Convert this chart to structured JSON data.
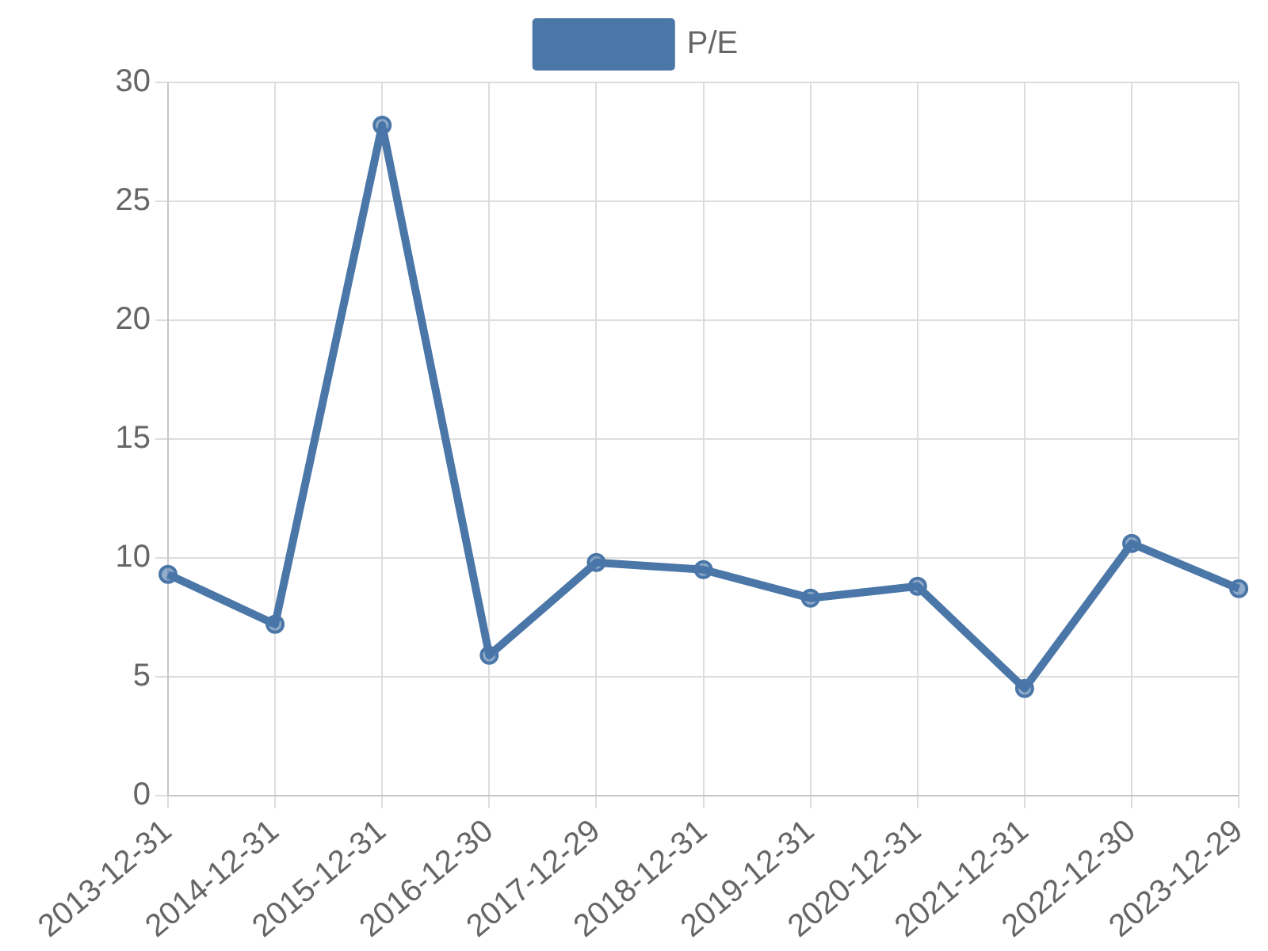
{
  "chart_data": {
    "type": "line",
    "categories": [
      "2013-12-31",
      "2014-12-31",
      "2015-12-31",
      "2016-12-30",
      "2017-12-29",
      "2018-12-31",
      "2019-12-31",
      "2020-12-31",
      "2021-12-31",
      "2022-12-30",
      "2023-12-29"
    ],
    "series": [
      {
        "name": "P/E",
        "color": "#4a76a8",
        "values": [
          9.3,
          7.2,
          28.2,
          5.9,
          9.8,
          9.5,
          8.3,
          8.8,
          4.5,
          10.6,
          8.7
        ]
      }
    ],
    "ylim": [
      0,
      30
    ],
    "yticks": [
      0,
      5,
      10,
      15,
      20,
      25,
      30
    ],
    "grid": true,
    "legend": "top",
    "marker": "circle",
    "line_style": "solid"
  }
}
